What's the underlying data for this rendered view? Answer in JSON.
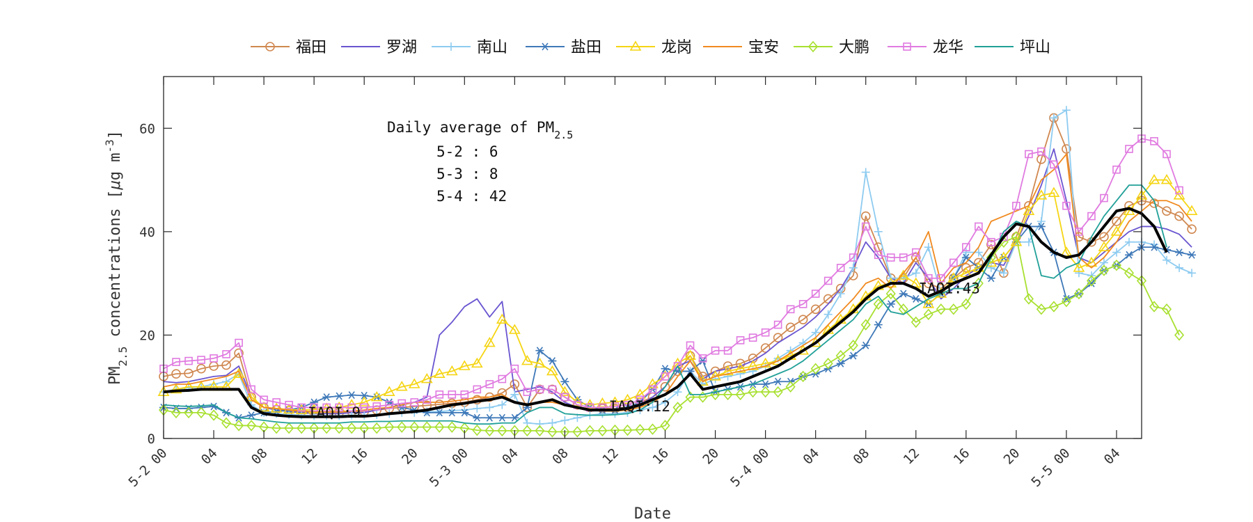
{
  "chart_data": {
    "type": "line",
    "xlabel": "Date",
    "ylabel_parts": [
      "PM",
      "2.5",
      " concentrations [",
      "μ",
      "g m",
      "-3",
      "]"
    ],
    "ylim": [
      0,
      70
    ],
    "yticks": [
      0,
      20,
      40,
      60
    ],
    "xlim": [
      0,
      78
    ],
    "xticks": [
      {
        "x": 0,
        "label": "5-2 00"
      },
      {
        "x": 4,
        "label": "04"
      },
      {
        "x": 8,
        "label": "08"
      },
      {
        "x": 12,
        "label": "12"
      },
      {
        "x": 16,
        "label": "16"
      },
      {
        "x": 20,
        "label": "20"
      },
      {
        "x": 24,
        "label": "5-3 00"
      },
      {
        "x": 28,
        "label": "04"
      },
      {
        "x": 32,
        "label": "08"
      },
      {
        "x": 36,
        "label": "12"
      },
      {
        "x": 40,
        "label": "16"
      },
      {
        "x": 44,
        "label": "20"
      },
      {
        "x": 48,
        "label": "5-4 00"
      },
      {
        "x": 52,
        "label": "04"
      },
      {
        "x": 56,
        "label": "08"
      },
      {
        "x": 60,
        "label": "12"
      },
      {
        "x": 64,
        "label": "16"
      },
      {
        "x": 68,
        "label": "20"
      },
      {
        "x": 72,
        "label": "5-5 00"
      },
      {
        "x": 76,
        "label": "04"
      }
    ],
    "x_unit": "hours since 5-2 00:00",
    "grid": false,
    "legend_position": "top",
    "series": [
      {
        "name": "福田",
        "color": "#D08850",
        "marker": "circle",
        "values": [
          12,
          12.5,
          12.6,
          13.5,
          14,
          14.2,
          16.5,
          8,
          6,
          5.6,
          5.4,
          5.2,
          5,
          5,
          5,
          5.2,
          5.2,
          5.5,
          5.8,
          6,
          6.2,
          6.4,
          6.6,
          6.8,
          7,
          7.5,
          8,
          8.8,
          10.5,
          6,
          9.5,
          9.5,
          8,
          6.5,
          6,
          5.8,
          5.8,
          6,
          7,
          8,
          10,
          13,
          16,
          12,
          13,
          14,
          14.5,
          15.5,
          17.5,
          19.5,
          21.5,
          23,
          25,
          27,
          29,
          31.5,
          43,
          37,
          31,
          31,
          35,
          30,
          29,
          31,
          33,
          34,
          37.5,
          32,
          39,
          45,
          54,
          62,
          56,
          39,
          38,
          39,
          42,
          45,
          46,
          45.5,
          44,
          43,
          40.5
        ]
      },
      {
        "name": "罗湖",
        "color": "#6A55D0",
        "marker": "none",
        "values": [
          11,
          10.8,
          11,
          11.5,
          12,
          12.2,
          14,
          8,
          6,
          5.5,
          5.2,
          5,
          4.8,
          4.8,
          4.8,
          5,
          5,
          5.5,
          6,
          6.5,
          7,
          8,
          20,
          22.5,
          25.5,
          27,
          23.5,
          26.5,
          9,
          9.5,
          10,
          9,
          7,
          6,
          5.8,
          5.6,
          5.6,
          5.8,
          6.5,
          8,
          10,
          14,
          15,
          11.5,
          13,
          13.5,
          14,
          15,
          16.5,
          18.5,
          20,
          21.5,
          23.5,
          26,
          29,
          33,
          38,
          35,
          31,
          30,
          34,
          31,
          27,
          29,
          31.5,
          33,
          34,
          33.5,
          38,
          43,
          49,
          56,
          46,
          35,
          34,
          36,
          38,
          40,
          41,
          41,
          40.5,
          39.5,
          37
        ]
      },
      {
        "name": "南山",
        "color": "#8DCBF0",
        "marker": "plus",
        "values": [
          9,
          9.5,
          9.8,
          10,
          10.5,
          11,
          12.5,
          6.5,
          5,
          4.8,
          4.6,
          4.5,
          4.4,
          4.4,
          4.4,
          4.5,
          4.5,
          4.6,
          4.8,
          5,
          5,
          5.2,
          5.2,
          5.4,
          5.5,
          5.8,
          6,
          6.5,
          8.5,
          3,
          2.8,
          3,
          3.5,
          4,
          4.5,
          4.8,
          4.8,
          5,
          5.5,
          6,
          7,
          9,
          13,
          10.5,
          11.5,
          12,
          12.5,
          13,
          14,
          15.5,
          17,
          18.5,
          20.5,
          24,
          28,
          33,
          51.5,
          40,
          31,
          31,
          32,
          37,
          28,
          31,
          36,
          36,
          33,
          32,
          38,
          38,
          42,
          62,
          63.5,
          32,
          31.5,
          34,
          36,
          38,
          38,
          37.5,
          34.5,
          33,
          32
        ]
      },
      {
        "name": "盐田",
        "color": "#3E78B8",
        "marker": "asterisk",
        "values": [
          6,
          5.8,
          5.8,
          6,
          6.2,
          5,
          4,
          4.5,
          5,
          5.2,
          5.5,
          6,
          7,
          8,
          8.2,
          8.4,
          8.3,
          8,
          7,
          6,
          5.5,
          5,
          5,
          5,
          5,
          4,
          4,
          4,
          4,
          6,
          17,
          15,
          11,
          7.5,
          6,
          5.5,
          5.5,
          6,
          7,
          9.5,
          13.5,
          13,
          13,
          15,
          9,
          9.5,
          10,
          10.5,
          10.5,
          11,
          11,
          12,
          12.5,
          13.5,
          14.5,
          16,
          18,
          22,
          26,
          28,
          27,
          26,
          28,
          31,
          35,
          33,
          31,
          35,
          38,
          41,
          41,
          36,
          27,
          28,
          30,
          32.5,
          33.5,
          35.5,
          37,
          37,
          36.5,
          36,
          35.5
        ]
      },
      {
        "name": "龙岗",
        "color": "#F5D514",
        "marker": "triangle",
        "values": [
          9,
          9.5,
          10,
          10,
          10,
          10,
          12.5,
          8,
          6,
          5.8,
          5.6,
          5.5,
          5.6,
          5.8,
          6,
          6.5,
          7,
          8,
          9,
          10,
          10.5,
          11.5,
          12.5,
          13,
          14,
          14.5,
          18.5,
          23,
          21,
          15,
          14.5,
          13,
          9,
          7,
          6.5,
          6.8,
          7,
          7.5,
          8.5,
          10.5,
          12,
          14.5,
          16,
          11,
          12,
          13,
          13.5,
          14,
          14.5,
          15,
          16,
          17,
          18.5,
          21,
          23,
          25,
          27.5,
          29.5,
          30,
          31.5,
          30,
          26,
          28,
          31,
          32,
          33,
          34,
          35,
          38,
          44,
          47,
          47.5,
          36,
          33,
          34,
          37,
          40,
          44,
          47,
          50,
          50,
          47,
          44
        ]
      },
      {
        "name": "宝安",
        "color": "#F08A20",
        "marker": "none",
        "values": [
          10,
          10.5,
          10.5,
          11,
          11.5,
          12,
          13,
          7.5,
          6,
          5.8,
          5.5,
          5.3,
          5.2,
          5.2,
          5.2,
          5.3,
          5.5,
          5.8,
          6,
          6.5,
          7,
          7,
          7,
          7.2,
          7.5,
          8,
          8,
          8.5,
          7,
          6.5,
          7,
          7,
          6.5,
          6,
          5.5,
          5.3,
          5.3,
          5.5,
          6,
          7,
          8.5,
          12,
          15,
          11,
          12,
          12.5,
          13,
          13.5,
          14,
          15,
          16.5,
          18,
          19.5,
          22,
          24.5,
          27,
          30,
          31,
          29,
          32,
          35,
          40,
          30,
          33,
          34,
          37,
          42,
          43,
          44,
          45,
          50,
          52,
          55,
          35,
          33,
          35,
          38,
          42,
          44,
          46,
          46,
          45,
          42
        ]
      },
      {
        "name": "大鹏",
        "color": "#A8E030",
        "marker": "diamond",
        "values": [
          5.5,
          5,
          5,
          5,
          4.5,
          3,
          2.5,
          2.5,
          2.2,
          2,
          2,
          2,
          2,
          2,
          2,
          2,
          2,
          2,
          2.2,
          2.2,
          2.2,
          2.2,
          2.2,
          2.2,
          2,
          1.6,
          1.5,
          1.5,
          1.5,
          1.5,
          1.5,
          1.3,
          1.3,
          1.3,
          1.5,
          1.5,
          1.6,
          1.6,
          1.7,
          1.8,
          2.5,
          6,
          8,
          8,
          8.5,
          8.5,
          8.5,
          9,
          9,
          9,
          10,
          12,
          13.5,
          14.5,
          16,
          18,
          22,
          26,
          28,
          25,
          22.5,
          24,
          25,
          25,
          26,
          30,
          35,
          38,
          39,
          27,
          25,
          25.5,
          26.5,
          28,
          30.5,
          32.5,
          33.5,
          32,
          30.5,
          25.5,
          25,
          20
        ]
      },
      {
        "name": "龙华",
        "color": "#E07AE0",
        "marker": "square",
        "values": [
          13.5,
          14.8,
          15,
          15.2,
          15.5,
          16.3,
          18.5,
          9.5,
          7.5,
          7,
          6.5,
          6,
          6,
          6,
          6,
          6,
          6,
          6.2,
          6.5,
          6.8,
          7,
          7.5,
          8.5,
          8.5,
          8.5,
          9.5,
          10.5,
          11.5,
          13.5,
          9,
          9.5,
          9.5,
          8,
          6.5,
          6,
          6,
          6.2,
          6.5,
          7.5,
          9.5,
          12,
          14,
          18,
          15.5,
          17,
          17,
          19,
          19.5,
          20.5,
          22,
          25,
          26,
          28,
          30.5,
          33,
          35,
          41,
          35.5,
          35,
          35,
          36,
          31,
          31,
          34,
          37,
          41,
          38,
          39,
          45,
          55,
          55.5,
          53,
          45,
          40,
          43,
          46.5,
          52,
          56,
          58,
          57.5,
          55,
          48
        ]
      },
      {
        "name": "坪山",
        "color": "#20A098",
        "marker": "none",
        "values": [
          6.5,
          6.3,
          6.2,
          6.3,
          6.5,
          5,
          4,
          3.8,
          3.5,
          3.2,
          3,
          3,
          3,
          3,
          3,
          3.2,
          3.2,
          3.3,
          3.3,
          3.4,
          3.4,
          3.4,
          3.4,
          3.4,
          3,
          2.8,
          2.8,
          3,
          3,
          5,
          6,
          6,
          4.8,
          4.6,
          4.5,
          4.5,
          4.6,
          4.8,
          5.5,
          7,
          10,
          14,
          8.5,
          8.5,
          9,
          9.5,
          10,
          10.5,
          11.5,
          12.5,
          13.5,
          15,
          17,
          19,
          21,
          23,
          26,
          27.5,
          24.5,
          24,
          25.5,
          27,
          28,
          29,
          29,
          30,
          35,
          40,
          42,
          41,
          31.5,
          31,
          33,
          34,
          39,
          43,
          46,
          49,
          49,
          46,
          37
        ]
      },
      {
        "name": "",
        "color": "#000000",
        "marker": "none",
        "bold": true,
        "values": [
          9,
          9.2,
          9.3,
          9.5,
          9.5,
          9.5,
          9.5,
          6,
          4.8,
          4.5,
          4.3,
          4.2,
          4.2,
          4.2,
          4.2,
          4.3,
          4.3,
          4.5,
          4.8,
          5,
          5.2,
          5.5,
          6,
          6.5,
          6.8,
          7.2,
          7.5,
          8,
          7,
          6.5,
          7,
          7.5,
          6.5,
          6,
          5.5,
          5.5,
          5.5,
          5.8,
          6.5,
          7.5,
          8.5,
          10,
          12.5,
          9.5,
          10,
          10.5,
          11,
          12,
          13,
          14,
          15.5,
          17,
          18.5,
          20.5,
          22.5,
          24.5,
          27,
          29,
          30,
          30,
          29,
          27.5,
          28.5,
          30,
          31,
          32,
          35.5,
          39,
          41.5,
          41,
          38,
          36,
          35,
          35.5,
          38,
          41,
          44,
          44.5,
          43.5,
          41,
          36
        ]
      }
    ],
    "annotations": {
      "daily_title_main": "Daily average of PM",
      "daily_title_sub": "2.5",
      "daily": [
        "5-2 : 6",
        "5-3 : 8",
        "5-4 : 42"
      ],
      "iaqi": [
        {
          "text": "IAQI:9",
          "x": 11.5,
          "y": 5
        },
        {
          "text": "IAQI:12",
          "x": 35.5,
          "y": 6.2
        },
        {
          "text": "IAQI:43",
          "x": 60.2,
          "y": 29
        }
      ]
    }
  }
}
